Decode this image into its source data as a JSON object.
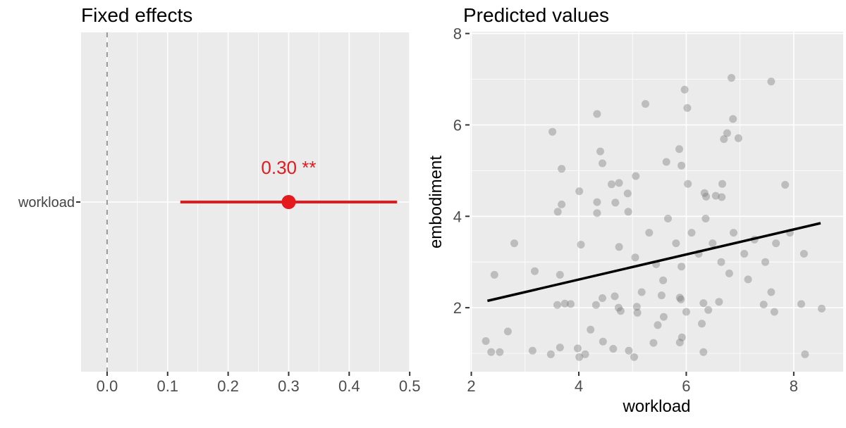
{
  "theme": {
    "background": "#FFFFFF",
    "panel_bg": "#EBEBEB",
    "grid_color": "#FFFFFF",
    "tick_color": "#333333",
    "tick_label_color": "#4D4D4D",
    "category_label_color": "#444444",
    "title_color": "#000000",
    "zero_line_color": "#999999"
  },
  "chart_data": [
    {
      "type": "forest",
      "title": "Fixed effects",
      "terms": [
        {
          "label": "workload",
          "estimate": 0.3,
          "estimate_label": "0.30 **",
          "ci_low": 0.121,
          "ci_high": 0.479
        }
      ],
      "x_tick_labels": [
        "0.0",
        "0.1",
        "0.2",
        "0.3",
        "0.4",
        "0.5"
      ],
      "x_tick_values": [
        0,
        0.1,
        0.2,
        0.3,
        0.4,
        0.5
      ],
      "x_minor_values": [
        0.05,
        0.15,
        0.25,
        0.35,
        0.45
      ],
      "xlim": [
        -0.043,
        0.501
      ],
      "zero_line": 0,
      "estimate_color": "#E41A1C"
    },
    {
      "type": "scatter",
      "title": "Predicted values",
      "xlabel": "workload",
      "ylabel": "embodiment",
      "x_tick_labels": [
        "2",
        "4",
        "6",
        "8"
      ],
      "x_tick_values": [
        2,
        4,
        6,
        8
      ],
      "x_minor_values": [
        3,
        5,
        7
      ],
      "y_tick_labels": [
        "2",
        "4",
        "6",
        "8"
      ],
      "y_tick_values": [
        2,
        4,
        6,
        8
      ],
      "y_minor_values": [
        1,
        3,
        5,
        7
      ],
      "xlim": [
        1.98,
        8.92
      ],
      "ylim": [
        0.6,
        8.04
      ],
      "point_color": "#787878",
      "point_opacity": 0.4,
      "regression_line": {
        "x1": 2.3,
        "y1": 2.15,
        "x2": 8.5,
        "y2": 3.85,
        "color": "#000000"
      },
      "points": [
        [
          6.84,
          7.03
        ],
        [
          7.58,
          6.95
        ],
        [
          5.97,
          6.77
        ],
        [
          5.24,
          6.46
        ],
        [
          6.02,
          6.37
        ],
        [
          4.34,
          6.24
        ],
        [
          6.87,
          6.13
        ],
        [
          3.51,
          5.85
        ],
        [
          6.76,
          5.82
        ],
        [
          6.7,
          5.69
        ],
        [
          6.97,
          5.71
        ],
        [
          5.87,
          5.47
        ],
        [
          4.4,
          5.42
        ],
        [
          4.44,
          5.16
        ],
        [
          5.63,
          5.19
        ],
        [
          5.91,
          5.11
        ],
        [
          3.68,
          5.04
        ],
        [
          5.06,
          4.88
        ],
        [
          4.61,
          4.7
        ],
        [
          4.75,
          4.73
        ],
        [
          6.03,
          4.71
        ],
        [
          6.67,
          4.71
        ],
        [
          7.84,
          4.69
        ],
        [
          4.01,
          4.55
        ],
        [
          4.91,
          4.5
        ],
        [
          6.34,
          4.51
        ],
        [
          6.37,
          4.43
        ],
        [
          6.55,
          4.45
        ],
        [
          6.66,
          4.42
        ],
        [
          4.34,
          4.31
        ],
        [
          4.68,
          4.3
        ],
        [
          3.68,
          4.26
        ],
        [
          2.8,
          3.41
        ],
        [
          3.18,
          2.8
        ],
        [
          3.61,
          4.1
        ],
        [
          3.65,
          2.72
        ],
        [
          4.04,
          3.38
        ],
        [
          4.34,
          4.07
        ],
        [
          4.75,
          3.33
        ],
        [
          4.92,
          4.1
        ],
        [
          5.05,
          3.1
        ],
        [
          5.31,
          3.64
        ],
        [
          5.44,
          2.95
        ],
        [
          5.66,
          3.95
        ],
        [
          5.81,
          3.41
        ],
        [
          5.91,
          2.9
        ],
        [
          6.1,
          3.64
        ],
        [
          6.23,
          3.18
        ],
        [
          6.36,
          3.95
        ],
        [
          6.49,
          3.41
        ],
        [
          6.65,
          3.0
        ],
        [
          6.88,
          3.64
        ],
        [
          7.08,
          3.18
        ],
        [
          7.27,
          3.49
        ],
        [
          7.47,
          3.0
        ],
        [
          7.67,
          3.41
        ],
        [
          7.93,
          3.64
        ],
        [
          8.19,
          3.18
        ],
        [
          2.43,
          2.72
        ],
        [
          5.57,
          2.6
        ],
        [
          6.8,
          2.75
        ],
        [
          7.15,
          2.62
        ],
        [
          3.6,
          2.06
        ],
        [
          3.74,
          2.09
        ],
        [
          3.85,
          2.08
        ],
        [
          4.32,
          2.06
        ],
        [
          4.44,
          2.21
        ],
        [
          4.67,
          2.25
        ],
        [
          4.74,
          2.0
        ],
        [
          4.78,
          1.93
        ],
        [
          5.08,
          2.02
        ],
        [
          5.17,
          2.34
        ],
        [
          5.54,
          2.27
        ],
        [
          5.58,
          1.8
        ],
        [
          5.47,
          1.62
        ],
        [
          5.09,
          1.89
        ],
        [
          5.88,
          2.22
        ],
        [
          5.9,
          2.18
        ],
        [
          6.0,
          1.91
        ],
        [
          6.32,
          2.1
        ],
        [
          6.41,
          1.95
        ],
        [
          6.29,
          1.65
        ],
        [
          6.61,
          2.13
        ],
        [
          7.58,
          2.34
        ],
        [
          7.44,
          2.07
        ],
        [
          7.64,
          1.91
        ],
        [
          8.14,
          2.08
        ],
        [
          8.52,
          1.98
        ],
        [
          2.27,
          1.27
        ],
        [
          2.37,
          1.03
        ],
        [
          2.53,
          1.03
        ],
        [
          2.68,
          1.48
        ],
        [
          3.14,
          1.06
        ],
        [
          3.48,
          0.98
        ],
        [
          3.65,
          1.13
        ],
        [
          3.98,
          1.11
        ],
        [
          4.01,
          0.92
        ],
        [
          4.12,
          0.98
        ],
        [
          4.22,
          1.52
        ],
        [
          4.45,
          1.26
        ],
        [
          4.64,
          1.1
        ],
        [
          4.93,
          1.06
        ],
        [
          5.03,
          0.92
        ],
        [
          5.39,
          1.23
        ],
        [
          5.92,
          1.35
        ],
        [
          5.88,
          1.24
        ],
        [
          6.32,
          1.03
        ],
        [
          8.21,
          0.98
        ]
      ]
    }
  ]
}
